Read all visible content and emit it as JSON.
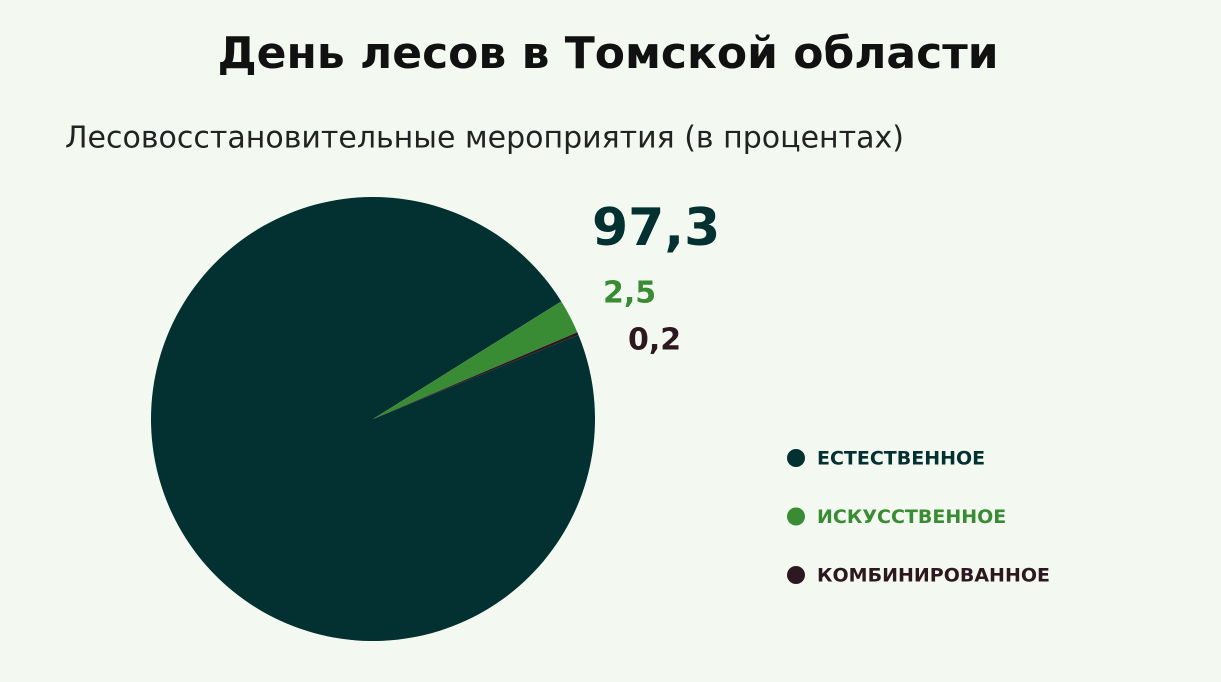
{
  "chart_data": {
    "type": "pie",
    "title": "День лесов в Томской области",
    "subtitle": "Лесовосстановительные мероприятия (в процентах)",
    "categories": [
      "ЕСТЕСТВЕННОЕ",
      "ИСКУССТВЕННОЕ",
      "КОМБИНИРОВАННОЕ"
    ],
    "values": [
      97.3,
      2.5,
      0.2
    ],
    "value_labels": [
      "97,3",
      "2,5",
      "0,2"
    ],
    "colors": [
      "#033030",
      "#3a8c34",
      "#2d1821"
    ],
    "legend": "right"
  }
}
